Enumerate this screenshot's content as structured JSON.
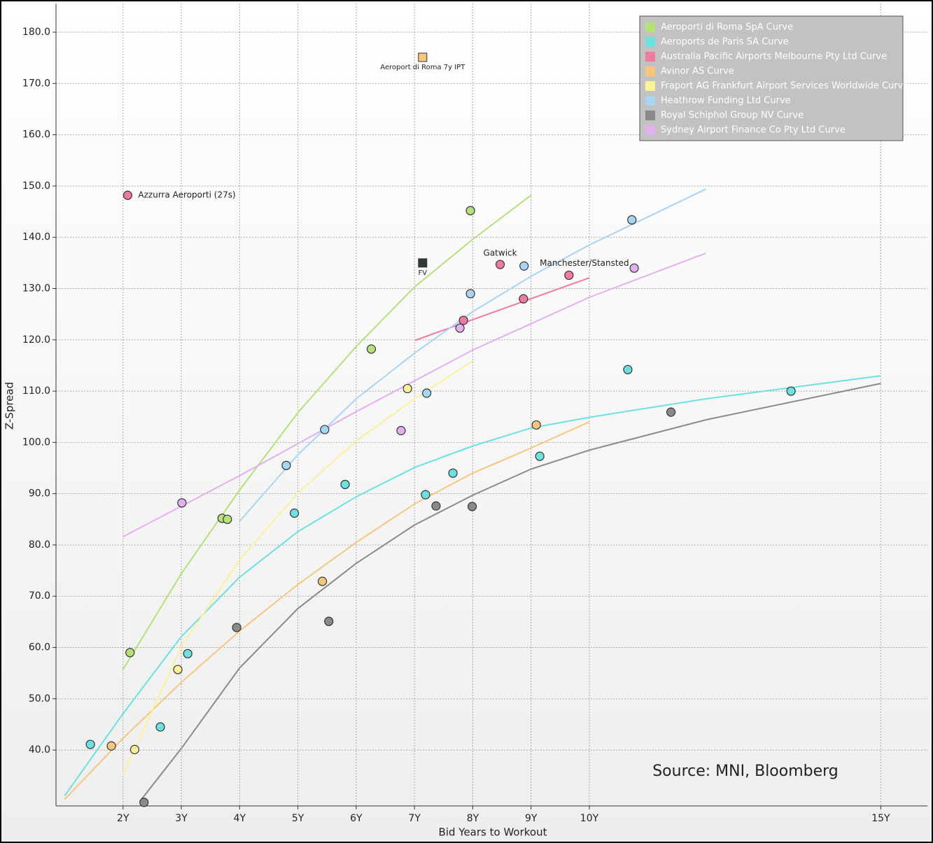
{
  "chart_data": {
    "type": "scatter",
    "x_label": "Bid Years to Workout",
    "y_label": "Z-Spread",
    "xlim": [
      0.85,
      15.8
    ],
    "ylim": [
      29.1,
      185.6
    ],
    "xticks": [
      {
        "value": 2,
        "label": "2Y"
      },
      {
        "value": 3,
        "label": "3Y"
      },
      {
        "value": 4,
        "label": "4Y"
      },
      {
        "value": 5,
        "label": "5Y"
      },
      {
        "value": 6,
        "label": "6Y"
      },
      {
        "value": 7,
        "label": "7Y"
      },
      {
        "value": 8,
        "label": "8Y"
      },
      {
        "value": 9,
        "label": "9Y"
      },
      {
        "value": 10,
        "label": "10Y"
      },
      {
        "value": 15,
        "label": "15Y"
      }
    ],
    "yticks": [
      {
        "value": 40,
        "label": "40.0"
      },
      {
        "value": 50,
        "label": "50.0"
      },
      {
        "value": 60,
        "label": "60.0"
      },
      {
        "value": 70,
        "label": "70.0"
      },
      {
        "value": 80,
        "label": "80.0"
      },
      {
        "value": 90,
        "label": "90.0"
      },
      {
        "value": 100,
        "label": "100.0"
      },
      {
        "value": 110,
        "label": "110.0"
      },
      {
        "value": 120,
        "label": "120.0"
      },
      {
        "value": 130,
        "label": "130.0"
      },
      {
        "value": 140,
        "label": "140.0"
      },
      {
        "value": 150,
        "label": "150.0"
      },
      {
        "value": 160,
        "label": "160.0"
      },
      {
        "value": 170,
        "label": "170.0"
      },
      {
        "value": 180,
        "label": "180.0"
      }
    ],
    "grid": true,
    "legend": "upper right",
    "annotation": "Source: MNI, Bloomberg",
    "series": [
      {
        "name": "Aeroporti di Roma SpA Curve",
        "color": "#b5e07a",
        "x": [
          2.12,
          3.7,
          3.79,
          6.26,
          7.96
        ],
        "values": [
          59.0,
          85.2,
          85.0,
          118.2,
          145.2
        ],
        "curve_x": [
          2,
          3,
          4,
          5,
          6,
          7,
          8,
          9
        ],
        "curve_values": [
          55.7,
          74.4,
          90.7,
          105.8,
          118.7,
          130.3,
          139.6,
          148.2
        ]
      },
      {
        "name": "Aeroports de Paris SA Curve",
        "color": "#6de0e0",
        "x": [
          1.44,
          2.64,
          3.11,
          4.94,
          5.81,
          7.19,
          7.66,
          9.15,
          10.66,
          13.46
        ],
        "values": [
          41.1,
          44.5,
          58.8,
          86.2,
          91.8,
          89.8,
          94.0,
          97.3,
          114.2,
          110.0
        ],
        "curve_x": [
          1,
          2,
          3,
          4,
          5,
          6,
          7,
          8,
          9,
          10,
          12,
          15
        ],
        "curve_values": [
          31.1,
          47.1,
          62.1,
          73.7,
          82.6,
          89.4,
          95.1,
          99.3,
          102.8,
          104.9,
          108.5,
          113.0
        ]
      },
      {
        "name": "Australia Pacific Airports Melbourne Pty Ltd Curve",
        "color": "#f07aa6",
        "x": [
          2.08,
          8.47,
          7.84,
          8.87,
          9.65
        ],
        "values": [
          148.2,
          134.7,
          123.8,
          128.0,
          132.6
        ],
        "point_labels": [
          "Azzurra Aeroporti (27s)",
          "Gatwick",
          null,
          null,
          "Manchester/Stansted"
        ],
        "curve_x": [
          7.01,
          10
        ],
        "curve_values": [
          119.9,
          132.1
        ]
      },
      {
        "name": "Avinor AS Curve",
        "color": "#f5c77e",
        "x": [
          1.8,
          5.42,
          9.09
        ],
        "values": [
          40.8,
          72.9,
          103.4
        ],
        "curve_x": [
          1,
          2,
          3,
          4,
          5,
          6,
          7,
          8,
          9,
          10
        ],
        "curve_values": [
          30.4,
          42.3,
          53.2,
          63.2,
          72.3,
          80.5,
          88.0,
          94.0,
          98.9,
          104.0
        ]
      },
      {
        "name": "Fraport AG Frankfurt Airport Services Worldwide Curve",
        "color": "#f9f29b",
        "x": [
          2.94,
          2.2,
          6.88
        ],
        "values": [
          55.7,
          40.1,
          110.5
        ],
        "curve_x": [
          2,
          3,
          4,
          5,
          6,
          7,
          8
        ],
        "curve_values": [
          35.2,
          60.1,
          77.1,
          90.1,
          100.3,
          108.5,
          115.9
        ]
      },
      {
        "name": "Heathrow Funding Ltd Curve",
        "color": "#a8d5f2",
        "x": [
          4.8,
          5.46,
          7.21,
          7.96,
          8.88,
          10.73
        ],
        "values": [
          95.5,
          102.5,
          109.6,
          129.0,
          134.4,
          143.4
        ],
        "curve_x": [
          4,
          5,
          6,
          7,
          8,
          9,
          10,
          12
        ],
        "curve_values": [
          84.6,
          97.6,
          108.5,
          117.4,
          125.5,
          132.4,
          138.5,
          149.4
        ]
      },
      {
        "name": "Royal Schiphol Group NV Curve",
        "color": "#8a8a8a",
        "x": [
          2.36,
          3.95,
          5.53,
          7.37,
          7.99,
          11.4
        ],
        "values": [
          29.8,
          63.9,
          65.1,
          87.6,
          87.5,
          105.9
        ],
        "curve_x": [
          2.29,
          3,
          4,
          5,
          6,
          7,
          8,
          9,
          10,
          12,
          15
        ],
        "curve_values": [
          30.0,
          40.3,
          56.0,
          67.6,
          76.4,
          83.9,
          89.7,
          94.8,
          98.5,
          104.4,
          111.5
        ]
      },
      {
        "name": "Sydney Airport Finance Co Pty Ltd Curve",
        "color": "#e2b0ef",
        "x": [
          3.01,
          6.77,
          7.78,
          10.77
        ],
        "values": [
          88.2,
          102.3,
          122.3,
          134.0
        ],
        "curve_x": [
          2,
          4,
          6,
          8,
          10,
          12
        ],
        "curve_values": [
          81.6,
          93.5,
          106.0,
          118.0,
          128.3,
          136.9
        ]
      }
    ],
    "markers": [
      {
        "label": "Aeroport di Roma 7y IPT",
        "x": 7.14,
        "y": 175.1,
        "color": "#f5c77e",
        "shape": "square"
      },
      {
        "label": "FV",
        "x": 7.14,
        "y": 135.0,
        "color": "#2f3b3b",
        "shape": "square"
      }
    ]
  }
}
